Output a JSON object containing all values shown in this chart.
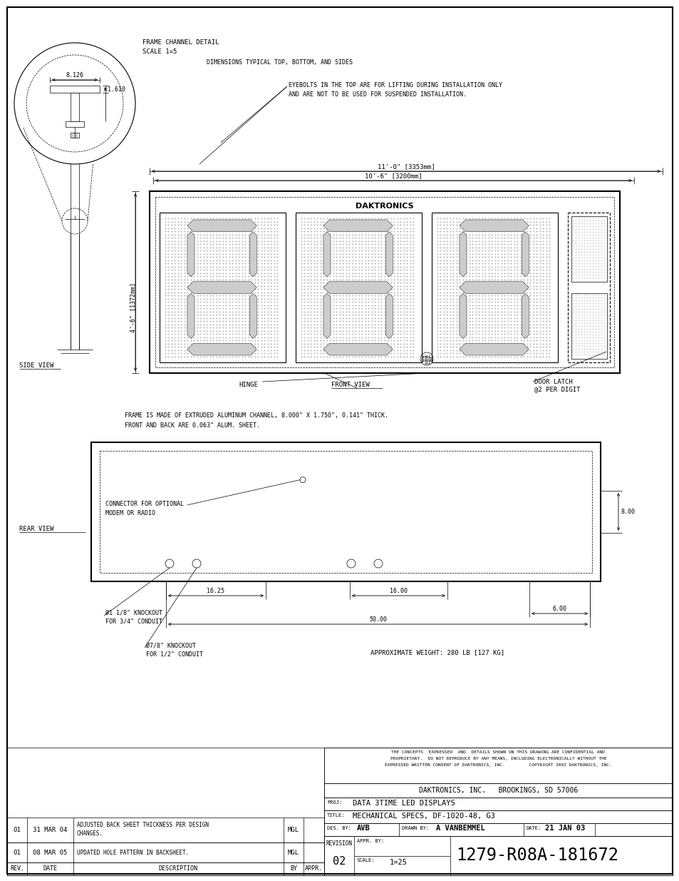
{
  "note1": "DIMENSIONS TYPICAL TOP, BOTTOM, AND SIDES",
  "note2_line1": "EYEBOLTS IN THE TOP ARE FOR LIFTING DURING INSTALLATION ONLY",
  "note2_line2": "AND ARE NOT TO BE USED FOR SUSPENDED INSTALLATION.",
  "note3_line1": "FRAME IS MADE OF EXTRUDED ALUMINUM CHANNEL, 8.000\" X 1.750\", 0.141\" THICK.",
  "note3_line2": "FRONT AND BACK ARE 0.063\" ALUM. SHEET.",
  "note4": "APPROXIMATE WEIGHT: 280 LB [127 KG]",
  "detail_title_line1": "FRAME CHANNEL DETAIL",
  "detail_title_line2": "SCALE 1=5",
  "dim_width1": "11'-0\" [3353mm]",
  "dim_width2": "10'-6\" [3200mm]",
  "dim_height": "4'-6\" [1372mm]",
  "dim_8126": "8.126",
  "dim_1610": "1.610",
  "dim_1625": "16.25",
  "dim_1600": "16.00",
  "dim_800": "8.00",
  "dim_600": "6.00",
  "dim_5000": "50.00",
  "label_side": "SIDE VIEW",
  "label_front": "FRONT VIEW",
  "label_rear": "REAR VIEW",
  "label_hinge": "HINGE",
  "label_door_latch": "DOOR LATCH\n@2 PER DIGIT",
  "label_daktronics": "DAKTRONICS",
  "label_connector_line1": "CONNECTOR FOR OPTIONAL",
  "label_connector_line2": "MODEM OR RADIO",
  "label_ko1_line1": "Ø1 1/8\" KNOCKOUT",
  "label_ko1_line2": "FOR 3/4\" CONDUIT",
  "label_ko2_line1": "Ø7/8\" KNOCKOUT",
  "label_ko2_line2": "FOR 1/2\" CONDUIT",
  "tb_confidential_line1": "THE CONCEPTS  EXPRESSED  AND  DETAILS SHOWN ON THIS DRAWING ARE CONFIDENTIAL AND",
  "tb_confidential_line2": "PROPRIETARY.  DO NOT REPRODUCE BY ANY MEANS, INCLUDING ELECTRONICALLY WITHOUT THE",
  "tb_confidential_line3": "EXPRESSED WRITTEN CONSENT OF DAKTRONICS, INC.         COPYRIGHT 2002 DAKTRONICS, INC.",
  "tb_company": "DAKTRONICS, INC.   BROOKINGS, SD 57006",
  "tb_proj_label": "PROJ:",
  "tb_proj": "DATA 3TIME LED DISPLAYS",
  "tb_title_label": "TITLE:",
  "tb_title": "MECHANICAL SPECS, DF-1020-48, G3",
  "tb_des_label": "DES. BY:",
  "tb_des": "AVB",
  "tb_drawn_label": "DRAWN BY:",
  "tb_drawn": "A VANBEMMEL",
  "tb_date_label": "DATE:",
  "tb_date": "21 JAN 03",
  "tb_rev_label": "REVISION",
  "tb_rev": "02",
  "tb_appr_label": "APPR. BY:",
  "tb_scale_label": "SCALE:",
  "tb_scale": "1=25",
  "tb_drawing_no": "1279-R08A-181672",
  "rev1_rev": "01",
  "rev1_date": "08 MAR 05",
  "rev1_desc": "UPDATED HOLE PATTERN IN BACKSHEET.",
  "rev1_by": "MGL",
  "rev2_rev": "01",
  "rev2_date": "31 MAR 04",
  "rev2_desc1": "ADJUSTED BACK SHEET THICKNESS PER DESIGN",
  "rev2_desc2": "CHANGES.",
  "rev2_by": "MGL",
  "rev_hdr_rev": "REV.",
  "rev_hdr_date": "DATE",
  "rev_hdr_desc": "DESCRIPTION",
  "rev_hdr_by": "BY",
  "rev_hdr_appr": "APPR."
}
